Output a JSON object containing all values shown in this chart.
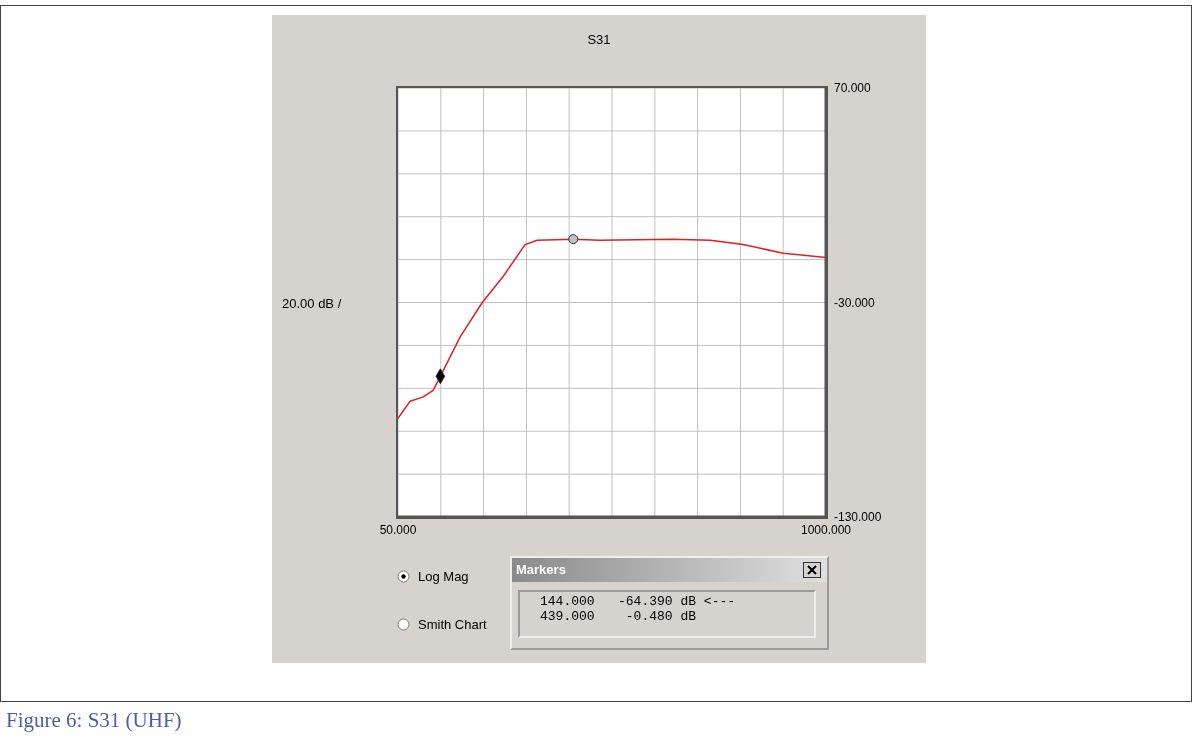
{
  "chart_data": {
    "type": "line",
    "title": "S31",
    "ylabel": "20.00 dB /",
    "xlim": [
      50,
      1000
    ],
    "xticks": [
      {
        "value": 50,
        "label": "50.000"
      },
      {
        "value": 145,
        "label": null
      },
      {
        "value": 240,
        "label": null
      },
      {
        "value": 335,
        "label": null
      },
      {
        "value": 430,
        "label": null
      },
      {
        "value": 525,
        "label": null
      },
      {
        "value": 620,
        "label": null
      },
      {
        "value": 715,
        "label": null
      },
      {
        "value": 810,
        "label": null
      },
      {
        "value": 905,
        "label": null
      },
      {
        "value": 1000,
        "label": "1000.000"
      }
    ],
    "ylim": [
      -130,
      70
    ],
    "yticks": [
      {
        "value": 70,
        "label": "70.000"
      },
      {
        "value": 50,
        "label": null
      },
      {
        "value": 30,
        "label": null
      },
      {
        "value": 10,
        "label": null
      },
      {
        "value": -10,
        "label": null
      },
      {
        "value": -30,
        "label": "-30.000"
      },
      {
        "value": -50,
        "label": null
      },
      {
        "value": -70,
        "label": null
      },
      {
        "value": -90,
        "label": null
      },
      {
        "value": -110,
        "label": null
      },
      {
        "value": -130,
        "label": "-130.000"
      }
    ],
    "grid": true,
    "legend": false,
    "line_style": "solid",
    "series": [
      {
        "color": "#e02020",
        "marker": "none",
        "x": [
          50,
          77,
          106,
          128,
          144,
          188,
          237,
          283,
          332,
          359,
          439,
          498,
          660,
          743,
          816,
          905,
          1000
        ],
        "values": [
          -84,
          -76,
          -74,
          -71,
          -64.4,
          -46,
          -30,
          -18,
          -3,
          -1,
          -0.5,
          -1,
          -0.5,
          -1,
          -3,
          -7,
          -9
        ]
      },
      {
        "type": "scatter",
        "color": "#000000",
        "marker": "diamond",
        "x": [
          144
        ],
        "values": [
          -64.39
        ]
      },
      {
        "type": "scatter",
        "color": "#c0c0c0",
        "marker": "circle",
        "x": [
          439
        ],
        "values": [
          -0.48
        ]
      }
    ],
    "annotations": [
      "Log Mag",
      "Smith Chart",
      "Markers",
      "144.000   -64.390 dB <---",
      "439.000    -0.480 dB",
      "Figure 6: S31 (UHF)"
    ]
  }
}
